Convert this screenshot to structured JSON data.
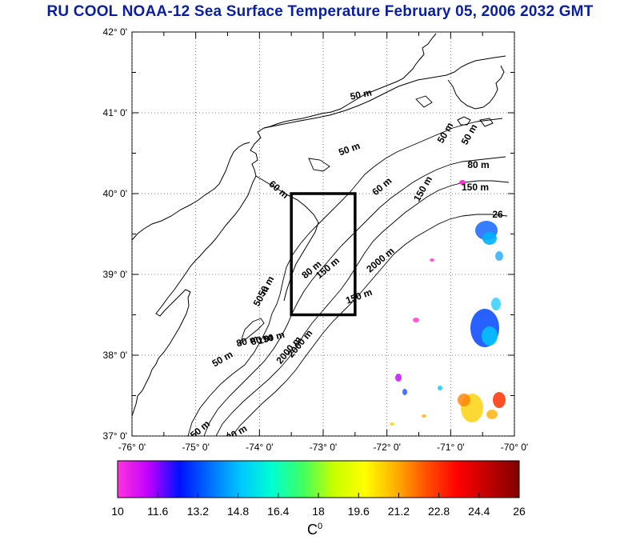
{
  "title": "RU COOL  NOAA-12 Sea Surface Temperature February 05, 2006 2032 GMT",
  "map": {
    "lat_labels": [
      "42° 0'",
      "41° 0'",
      "40° 0'",
      "39° 0'",
      "38° 0'",
      "37° 0'"
    ],
    "lon_labels": [
      "-76° 0'",
      "-75° 0'",
      "-74° 0'",
      "-73° 0'",
      "-72° 0'",
      "-71° 0'",
      "-70° 0'"
    ],
    "lat_range": [
      37,
      42
    ],
    "lon_range": [
      -76,
      -70
    ],
    "grid": "dotted",
    "study_box": {
      "lon": [
        -73.5,
        -72.5
      ],
      "lat": [
        38.5,
        40
      ]
    },
    "contour_labels": [
      "50 m",
      "50 m",
      "50 m",
      "80 m",
      "150 m",
      "60 m",
      "60 m",
      "150 m",
      "2000 m",
      "80 m",
      "150 m",
      "50 m",
      "50 m",
      "80 m",
      "150 m",
      "2000 m",
      "50 m",
      "80 m",
      "150 m",
      "2000 m",
      "150 m",
      "2000 m",
      "26",
      "50 m"
    ]
  },
  "colorbar": {
    "ticks": [
      "10",
      "11.6",
      "13.2",
      "14.8",
      "16.4",
      "18",
      "19.6",
      "21.2",
      "22.8",
      "24.4",
      "26"
    ],
    "unit": "C",
    "unit_sup": "0",
    "colors": [
      "#ff33dd",
      "#c000ff",
      "#0010ff",
      "#0070ff",
      "#00c8ff",
      "#00ffd0",
      "#40ff60",
      "#c8ff00",
      "#ffff00",
      "#ffb000",
      "#ff5000",
      "#ff0000",
      "#c00000",
      "#800000"
    ]
  }
}
